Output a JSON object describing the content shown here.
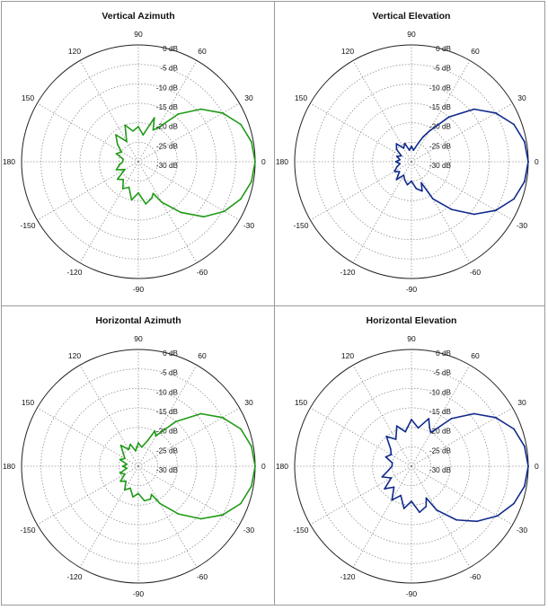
{
  "chart_data": [
    {
      "type": "polar",
      "title": "Vertical Azimuth",
      "color": "#1f9a16",
      "angle_ticks": [
        "0",
        "30",
        "60",
        "90",
        "120",
        "150",
        "180",
        "-150",
        "-120",
        "-90",
        "-60",
        "-30"
      ],
      "radial_ticks": [
        "0 dB",
        "-5 dB",
        "-10 dB",
        "-15 dB",
        "-20 dB",
        "-25 dB",
        "-30 dB"
      ],
      "rlim": [
        -30,
        0
      ],
      "grid": true,
      "series": [
        {
          "angles_deg": [
            0,
            10,
            20,
            30,
            40,
            50,
            60,
            65,
            70,
            80,
            90,
            100,
            110,
            120,
            130,
            140,
            150,
            160,
            170,
            180,
            190,
            200,
            210,
            220,
            230,
            240,
            250,
            260,
            270,
            280,
            290,
            295,
            300,
            310,
            320,
            330,
            340,
            350,
            360
          ],
          "gain_db": [
            0,
            -0.5,
            -2,
            -5,
            -9,
            -14,
            -20,
            -21,
            -18,
            -23,
            -21,
            -22,
            -20,
            -24,
            -21,
            -23,
            -25,
            -24,
            -26,
            -26,
            -25,
            -24,
            -26,
            -23,
            -24,
            -22,
            -23,
            -20,
            -22,
            -19,
            -20,
            -21,
            -18,
            -13,
            -8,
            -4.5,
            -2,
            -0.5,
            0
          ]
        }
      ]
    },
    {
      "type": "polar",
      "title": "Vertical Elevation",
      "color": "#0f2a8c",
      "angle_ticks": [
        "0",
        "30",
        "60",
        "90",
        "120",
        "150",
        "180",
        "-150",
        "-120",
        "-90",
        "-60",
        "-30"
      ],
      "radial_ticks": [
        "0 dB",
        "-5 dB",
        "-10 dB",
        "-15 dB",
        "-20 dB",
        "-25 dB",
        "-30 dB"
      ],
      "rlim": [
        -30,
        0
      ],
      "grid": true,
      "series": [
        {
          "angles_deg": [
            0,
            10,
            20,
            30,
            40,
            50,
            60,
            65,
            70,
            80,
            90,
            100,
            110,
            120,
            130,
            140,
            150,
            160,
            170,
            180,
            190,
            200,
            210,
            220,
            230,
            240,
            250,
            260,
            270,
            280,
            290,
            295,
            300,
            310,
            320,
            330,
            340,
            350,
            360
          ],
          "gain_db": [
            0,
            -0.5,
            -2,
            -5,
            -9,
            -15,
            -21,
            -23,
            -25,
            -27,
            -26,
            -27,
            -25,
            -26,
            -24,
            -25,
            -27,
            -26,
            -27,
            -26,
            -27,
            -26,
            -25,
            -26,
            -24,
            -26,
            -25,
            -24,
            -25,
            -23,
            -22,
            -24,
            -19,
            -14,
            -9,
            -5,
            -2,
            -0.5,
            0
          ]
        }
      ]
    },
    {
      "type": "polar",
      "title": "Horizontal Azimuth",
      "color": "#1f9a16",
      "angle_ticks": [
        "0",
        "30",
        "60",
        "90",
        "120",
        "150",
        "180",
        "-150",
        "-120",
        "-90",
        "-60",
        "-30"
      ],
      "radial_ticks": [
        "0 dB",
        "-5 dB",
        "-10 dB",
        "-15 dB",
        "-20 dB",
        "-25 dB",
        "-30 dB"
      ],
      "rlim": [
        -30,
        0
      ],
      "grid": true,
      "series": [
        {
          "angles_deg": [
            0,
            10,
            20,
            30,
            40,
            50,
            60,
            65,
            70,
            80,
            90,
            100,
            110,
            120,
            130,
            140,
            150,
            160,
            170,
            180,
            190,
            200,
            210,
            220,
            230,
            240,
            250,
            260,
            270,
            280,
            290,
            295,
            300,
            310,
            320,
            330,
            340,
            350,
            360
          ],
          "gain_db": [
            0,
            -0.5,
            -2,
            -5,
            -9,
            -15,
            -21,
            -20,
            -23,
            -25,
            -24,
            -26,
            -24,
            -25,
            -23,
            -25,
            -26,
            -25,
            -27,
            -26,
            -27,
            -25,
            -26,
            -24,
            -25,
            -23,
            -24,
            -22,
            -23,
            -21,
            -21,
            -22,
            -19,
            -14,
            -9,
            -5,
            -2,
            -0.5,
            0
          ]
        }
      ]
    },
    {
      "type": "polar",
      "title": "Horizontal Elevation",
      "color": "#0f2a8c",
      "angle_ticks": [
        "0",
        "30",
        "60",
        "90",
        "120",
        "150",
        "180",
        "-150",
        "-120",
        "-90",
        "-60",
        "-30"
      ],
      "radial_ticks": [
        "0 dB",
        "-5 dB",
        "-10 dB",
        "-15 dB",
        "-20 dB",
        "-25 dB",
        "-30 dB"
      ],
      "rlim": [
        -30,
        0
      ],
      "grid": true,
      "series": [
        {
          "angles_deg": [
            0,
            10,
            20,
            30,
            40,
            50,
            60,
            65,
            70,
            80,
            90,
            100,
            110,
            120,
            130,
            140,
            150,
            160,
            170,
            180,
            190,
            200,
            210,
            220,
            230,
            240,
            250,
            260,
            270,
            280,
            290,
            295,
            300,
            310,
            320,
            330,
            340,
            350,
            360
          ],
          "gain_db": [
            0,
            -0.5,
            -2,
            -5,
            -9,
            -14,
            -20,
            -19,
            -17,
            -20,
            -18,
            -21,
            -19,
            -22,
            -20,
            -23,
            -24,
            -23,
            -25,
            -25,
            -24,
            -22,
            -24,
            -21,
            -23,
            -20,
            -22,
            -19,
            -21,
            -18,
            -19,
            -21,
            -17,
            -12,
            -8,
            -4.5,
            -2,
            -0.5,
            0
          ]
        }
      ]
    }
  ]
}
